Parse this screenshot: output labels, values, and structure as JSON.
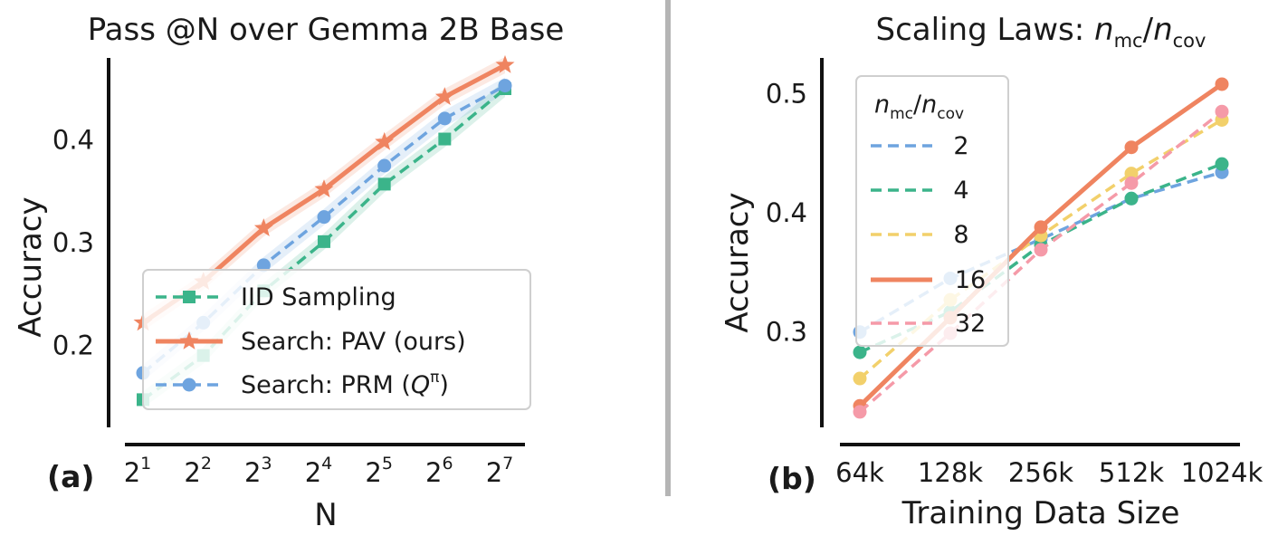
{
  "panels": {
    "a": {
      "label": "(a)"
    },
    "b": {
      "label": "(b)"
    }
  },
  "chart_data": [
    {
      "type": "line",
      "title": "Pass @N over Gemma 2B Base",
      "xlabel": "N",
      "ylabel": "Accuracy",
      "x": [
        1,
        2,
        3,
        4,
        5,
        6,
        7
      ],
      "xtick_base": "2",
      "xtick_exponents": [
        "1",
        "2",
        "3",
        "4",
        "5",
        "6",
        "7"
      ],
      "ylim": [
        0.12,
        0.48
      ],
      "yticks": [
        0.2,
        0.3,
        0.4
      ],
      "ytick_labels": [
        "0.2",
        "0.3",
        "0.4"
      ],
      "grid": false,
      "legend_position": "lower-right",
      "series": [
        {
          "name": "IID Sampling",
          "marker": "square",
          "dash": "dashed",
          "color": "#3bb48a",
          "values": [
            0.147,
            0.19,
            0.253,
            0.301,
            0.357,
            0.401,
            0.45
          ]
        },
        {
          "name": "Search: PAV (ours)",
          "marker": "star",
          "dash": "solid",
          "color": "#ef8460",
          "values": [
            0.222,
            0.262,
            0.314,
            0.352,
            0.398,
            0.442,
            0.473
          ]
        },
        {
          "name": "Search: PRM (Q^π)",
          "legend_prefix": "Search: PRM (",
          "legend_math": "Q",
          "legend_sup": "π",
          "legend_suffix": ")",
          "marker": "circle",
          "dash": "dashed",
          "color": "#6ea4df",
          "values": [
            0.173,
            0.222,
            0.278,
            0.325,
            0.375,
            0.421,
            0.453
          ]
        }
      ]
    },
    {
      "type": "line",
      "title": "Scaling Laws: n_mc/n_cov",
      "title_prefix": "Scaling Laws: ",
      "xlabel": "Training Data Size",
      "ylabel": "Accuracy",
      "categories": [
        "64k",
        "128k",
        "256k",
        "512k",
        "1024k"
      ],
      "ylim": [
        0.22,
        0.53
      ],
      "yticks": [
        0.3,
        0.4,
        0.5
      ],
      "ytick_labels": [
        "0.3",
        "0.4",
        "0.5"
      ],
      "grid": false,
      "legend_position": "upper-left",
      "legend_title": "n_mc/n_cov",
      "series": [
        {
          "name": "2",
          "dash": "dashed",
          "color": "#6ea4df",
          "values": [
            0.3,
            0.345,
            0.378,
            0.412,
            0.434
          ]
        },
        {
          "name": "4",
          "dash": "dashed",
          "color": "#3bb48a",
          "values": [
            0.283,
            0.317,
            0.373,
            0.412,
            0.441
          ]
        },
        {
          "name": "8",
          "dash": "dashed",
          "color": "#f2d06b",
          "values": [
            0.261,
            0.327,
            0.381,
            0.433,
            0.478
          ]
        },
        {
          "name": "16",
          "dash": "solid",
          "color": "#ef8460",
          "values": [
            0.238,
            0.312,
            0.388,
            0.455,
            0.508
          ]
        },
        {
          "name": "32",
          "dash": "dashed",
          "color": "#f59aa8",
          "values": [
            0.233,
            0.299,
            0.369,
            0.425,
            0.485
          ]
        }
      ]
    }
  ]
}
